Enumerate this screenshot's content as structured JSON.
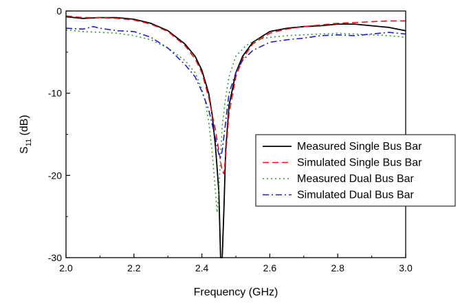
{
  "chart_data": {
    "type": "line",
    "xlabel": "Frequency (GHz)",
    "ylabel": {
      "main": "S",
      "sub": "11",
      "unit": " (dB)"
    },
    "xlim": [
      2.0,
      3.0
    ],
    "ylim": [
      -30,
      0
    ],
    "xticks": [
      2.0,
      2.2,
      2.4,
      2.6,
      2.8,
      3.0
    ],
    "yticks": [
      0,
      -10,
      -20,
      -30
    ],
    "xtick_labels": [
      "2.0",
      "2.2",
      "2.4",
      "2.6",
      "2.8",
      "3.0"
    ],
    "ytick_labels": [
      "0",
      "-10",
      "-20",
      "-30"
    ],
    "grid": false,
    "legend_position": "right-middle",
    "series": [
      {
        "name": "Measured Single Bus Bar",
        "color": "#000000",
        "style": "solid",
        "x": [
          2.0,
          2.05,
          2.1,
          2.15,
          2.2,
          2.25,
          2.3,
          2.35,
          2.38,
          2.4,
          2.42,
          2.43,
          2.44,
          2.45,
          2.455,
          2.46,
          2.465,
          2.47,
          2.48,
          2.5,
          2.52,
          2.55,
          2.6,
          2.65,
          2.7,
          2.75,
          2.8,
          2.85,
          2.9,
          2.95,
          3.0
        ],
        "y": [
          -0.7,
          -0.9,
          -0.8,
          -0.8,
          -1.0,
          -1.5,
          -2.4,
          -4.0,
          -5.5,
          -7.2,
          -10.0,
          -12.5,
          -16.5,
          -22.0,
          -30.0,
          -30.0,
          -24.0,
          -17.0,
          -11.5,
          -7.5,
          -5.5,
          -3.8,
          -2.5,
          -2.1,
          -1.9,
          -1.8,
          -1.6,
          -1.6,
          -1.8,
          -2.0,
          -2.4
        ]
      },
      {
        "name": "Simulated Single Bus Bar",
        "color": "#e8141c",
        "style": "dashed",
        "x": [
          2.0,
          2.05,
          2.1,
          2.15,
          2.2,
          2.25,
          2.3,
          2.35,
          2.38,
          2.4,
          2.42,
          2.44,
          2.45,
          2.46,
          2.465,
          2.47,
          2.48,
          2.5,
          2.52,
          2.55,
          2.6,
          2.65,
          2.7,
          2.75,
          2.8,
          2.85,
          2.9,
          2.95,
          3.0
        ],
        "y": [
          -0.6,
          -0.8,
          -0.8,
          -0.9,
          -1.1,
          -1.6,
          -2.5,
          -4.2,
          -5.8,
          -7.5,
          -10.5,
          -14.5,
          -17.0,
          -19.5,
          -19.8,
          -17.5,
          -12.5,
          -8.0,
          -5.8,
          -4.0,
          -2.7,
          -2.2,
          -1.9,
          -1.7,
          -1.5,
          -1.4,
          -1.3,
          -1.2,
          -1.2
        ]
      },
      {
        "name": "Measured Dual Bus Bar",
        "color": "#2a9a2a",
        "style": "dotted",
        "x": [
          2.0,
          2.05,
          2.1,
          2.15,
          2.2,
          2.25,
          2.3,
          2.35,
          2.38,
          2.4,
          2.41,
          2.42,
          2.43,
          2.44,
          2.445,
          2.45,
          2.455,
          2.46,
          2.47,
          2.48,
          2.5,
          2.53,
          2.56,
          2.6,
          2.65,
          2.7,
          2.75,
          2.8,
          2.85,
          2.9,
          2.95,
          3.0
        ],
        "y": [
          -2.3,
          -2.5,
          -2.6,
          -2.7,
          -3.0,
          -3.5,
          -4.5,
          -6.0,
          -7.5,
          -9.5,
          -11.0,
          -13.5,
          -17.0,
          -22.0,
          -24.5,
          -22.0,
          -17.5,
          -14.0,
          -10.5,
          -8.0,
          -5.5,
          -4.2,
          -3.5,
          -3.2,
          -3.0,
          -2.9,
          -2.8,
          -2.7,
          -2.8,
          -2.9,
          -3.0,
          -3.2
        ]
      },
      {
        "name": "Simulated Dual Bus Bar",
        "color": "#1c1cd6",
        "style": "dashdot",
        "x": [
          2.0,
          2.05,
          2.08,
          2.1,
          2.15,
          2.2,
          2.25,
          2.3,
          2.35,
          2.38,
          2.4,
          2.42,
          2.44,
          2.45,
          2.455,
          2.46,
          2.47,
          2.48,
          2.5,
          2.52,
          2.55,
          2.6,
          2.65,
          2.7,
          2.75,
          2.8,
          2.85,
          2.9,
          2.95,
          3.0
        ],
        "y": [
          -2.1,
          -2.2,
          -1.9,
          -2.1,
          -2.4,
          -2.5,
          -3.2,
          -4.5,
          -6.5,
          -8.0,
          -9.8,
          -12.0,
          -15.5,
          -17.5,
          -17.8,
          -17.0,
          -13.5,
          -10.0,
          -7.5,
          -6.0,
          -4.8,
          -3.8,
          -3.5,
          -3.3,
          -3.0,
          -2.9,
          -3.0,
          -2.8,
          -2.6,
          -2.8
        ]
      }
    ]
  }
}
